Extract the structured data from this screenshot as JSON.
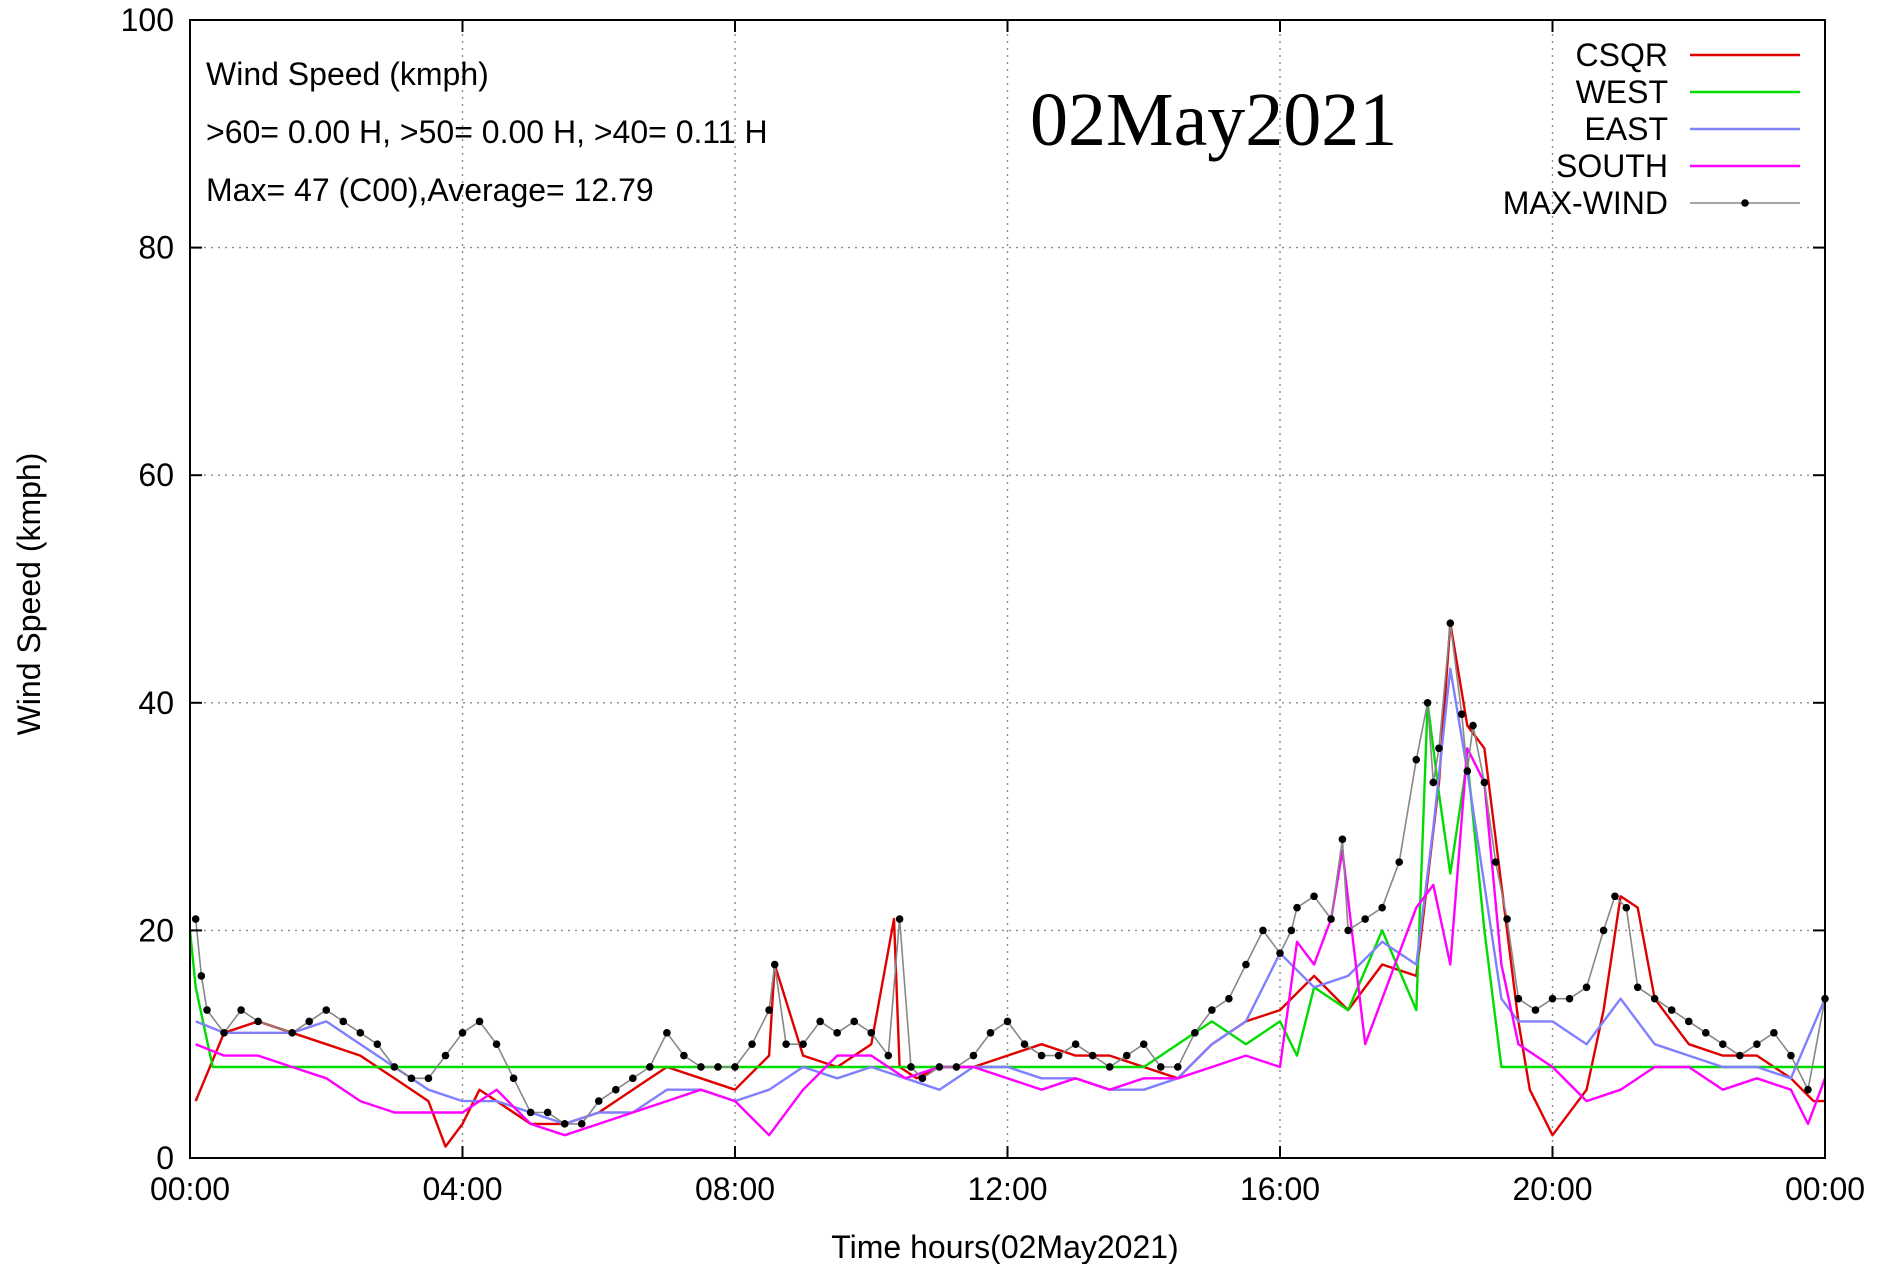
{
  "chart_data": {
    "type": "line",
    "title": "",
    "date_stamp": "02May2021",
    "xlabel": "Time hours(02May2021)",
    "ylabel": "Wind Speed (kmph)",
    "xlim": [
      "00:00",
      "24:00"
    ],
    "ylim": [
      0,
      100
    ],
    "x_ticks": [
      "00:00",
      "04:00",
      "08:00",
      "12:00",
      "16:00",
      "20:00",
      "00:00"
    ],
    "y_ticks": [
      "0",
      "20",
      "40",
      "60",
      "80",
      "100"
    ],
    "grid": true,
    "legend_position": "top-right",
    "annotations": [
      "Wind Speed (kmph)",
      ">60=  0.00 H, >50=  0.00 H, >40=  0.11 H",
      "Max= 47 (C00),Average= 12.79"
    ],
    "series": [
      {
        "name": "CSQR",
        "color": "#e00000",
        "x": [
          "00:05",
          "00:30",
          "01:00",
          "01:30",
          "02:00",
          "02:30",
          "03:00",
          "03:30",
          "03:45",
          "04:00",
          "04:15",
          "04:30",
          "05:00",
          "05:30",
          "06:00",
          "06:30",
          "07:00",
          "07:30",
          "08:00",
          "08:30",
          "08:35",
          "09:00",
          "09:30",
          "10:00",
          "10:20",
          "10:25",
          "10:40",
          "11:00",
          "11:30",
          "12:00",
          "12:30",
          "13:00",
          "13:30",
          "14:00",
          "14:30",
          "15:00",
          "15:30",
          "16:00",
          "16:30",
          "17:00",
          "17:30",
          "18:00",
          "18:20",
          "18:30",
          "18:45",
          "19:00",
          "19:15",
          "19:30",
          "19:40",
          "20:00",
          "20:30",
          "20:45",
          "21:00",
          "21:15",
          "21:30",
          "22:00",
          "22:30",
          "23:00",
          "23:30",
          "23:50",
          "24:00"
        ],
        "y": [
          5,
          11,
          12,
          11,
          10,
          9,
          7,
          5,
          1,
          3,
          6,
          5,
          3,
          3,
          4,
          6,
          8,
          7,
          6,
          9,
          17,
          9,
          8,
          10,
          21,
          8,
          7,
          8,
          8,
          9,
          10,
          9,
          9,
          8,
          7,
          10,
          12,
          13,
          16,
          13,
          17,
          16,
          33,
          47,
          38,
          36,
          24,
          12,
          6,
          2,
          6,
          13,
          23,
          22,
          14,
          10,
          9,
          9,
          7,
          5,
          5
        ]
      },
      {
        "name": "WEST",
        "color": "#00dc00",
        "x": [
          "00:00",
          "00:05",
          "00:20",
          "02:00",
          "04:00",
          "06:00",
          "08:00",
          "10:00",
          "12:00",
          "14:00",
          "15:00",
          "15:30",
          "16:00",
          "16:15",
          "16:30",
          "17:00",
          "17:30",
          "18:00",
          "18:10",
          "18:20",
          "18:30",
          "18:45",
          "19:00",
          "19:15",
          "19:30",
          "19:40",
          "19:45",
          "20:00",
          "20:30",
          "21:00",
          "22:00",
          "23:00",
          "24:00"
        ],
        "y": [
          20,
          15,
          8,
          8,
          8,
          8,
          8,
          8,
          8,
          8,
          12,
          10,
          12,
          9,
          15,
          13,
          20,
          13,
          40,
          32,
          25,
          35,
          20,
          8,
          8,
          8,
          8,
          8,
          8,
          8,
          8,
          8,
          8
        ]
      },
      {
        "name": "EAST",
        "color": "#8080ff",
        "x": [
          "00:05",
          "00:30",
          "01:00",
          "01:30",
          "02:00",
          "02:30",
          "03:00",
          "03:30",
          "04:00",
          "04:30",
          "05:00",
          "05:30",
          "06:00",
          "06:30",
          "07:00",
          "07:30",
          "08:00",
          "08:30",
          "09:00",
          "09:30",
          "10:00",
          "10:30",
          "11:00",
          "11:30",
          "12:00",
          "12:30",
          "13:00",
          "13:30",
          "14:00",
          "14:30",
          "15:00",
          "15:30",
          "16:00",
          "16:30",
          "17:00",
          "17:30",
          "18:00",
          "18:15",
          "18:30",
          "18:45",
          "19:00",
          "19:15",
          "19:30",
          "20:00",
          "20:30",
          "21:00",
          "21:30",
          "22:00",
          "22:30",
          "23:00",
          "23:30",
          "24:00"
        ],
        "y": [
          12,
          11,
          11,
          11,
          12,
          10,
          8,
          6,
          5,
          5,
          4,
          3,
          4,
          4,
          6,
          6,
          5,
          6,
          8,
          7,
          8,
          7,
          6,
          8,
          8,
          7,
          7,
          6,
          6,
          7,
          10,
          12,
          18,
          15,
          16,
          19,
          17,
          29,
          43,
          34,
          24,
          14,
          12,
          12,
          10,
          14,
          10,
          9,
          8,
          8,
          7,
          14
        ]
      },
      {
        "name": "SOUTH",
        "color": "#ff00ff",
        "x": [
          "00:05",
          "00:30",
          "01:00",
          "01:30",
          "02:00",
          "02:30",
          "03:00",
          "03:30",
          "04:00",
          "04:30",
          "05:00",
          "05:30",
          "06:00",
          "06:30",
          "07:00",
          "07:30",
          "08:00",
          "08:30",
          "09:00",
          "09:30",
          "10:00",
          "10:30",
          "11:00",
          "11:30",
          "12:00",
          "12:30",
          "13:00",
          "13:30",
          "14:00",
          "14:30",
          "15:00",
          "15:30",
          "16:00",
          "16:15",
          "16:30",
          "16:45",
          "16:55",
          "17:15",
          "17:45",
          "18:00",
          "18:15",
          "18:30",
          "18:45",
          "19:00",
          "19:15",
          "19:30",
          "20:00",
          "20:30",
          "21:00",
          "21:30",
          "22:00",
          "22:30",
          "23:00",
          "23:30",
          "23:45",
          "24:00"
        ],
        "y": [
          10,
          9,
          9,
          8,
          7,
          5,
          4,
          4,
          4,
          6,
          3,
          2,
          3,
          4,
          5,
          6,
          5,
          2,
          6,
          9,
          9,
          7,
          8,
          8,
          7,
          6,
          7,
          6,
          7,
          7,
          8,
          9,
          8,
          19,
          17,
          21,
          27,
          10,
          18,
          22,
          24,
          17,
          36,
          33,
          17,
          10,
          8,
          5,
          6,
          8,
          8,
          6,
          7,
          6,
          3,
          7
        ]
      },
      {
        "name": "MAX-WIND",
        "color": "#000000",
        "x": [
          "00:05",
          "00:10",
          "00:15",
          "00:30",
          "00:45",
          "01:00",
          "01:30",
          "01:45",
          "02:00",
          "02:15",
          "02:30",
          "02:45",
          "03:00",
          "03:15",
          "03:30",
          "03:45",
          "04:00",
          "04:15",
          "04:30",
          "04:45",
          "05:00",
          "05:15",
          "05:30",
          "05:45",
          "06:00",
          "06:15",
          "06:30",
          "06:45",
          "07:00",
          "07:15",
          "07:30",
          "07:45",
          "08:00",
          "08:15",
          "08:30",
          "08:35",
          "08:45",
          "09:00",
          "09:15",
          "09:30",
          "09:45",
          "10:00",
          "10:15",
          "10:25",
          "10:35",
          "10:45",
          "11:00",
          "11:15",
          "11:30",
          "11:45",
          "12:00",
          "12:15",
          "12:30",
          "12:45",
          "13:00",
          "13:15",
          "13:30",
          "13:45",
          "14:00",
          "14:15",
          "14:30",
          "14:45",
          "15:00",
          "15:15",
          "15:30",
          "15:45",
          "16:00",
          "16:10",
          "16:15",
          "16:30",
          "16:45",
          "16:55",
          "17:00",
          "17:15",
          "17:30",
          "17:45",
          "18:00",
          "18:10",
          "18:15",
          "18:20",
          "18:30",
          "18:40",
          "18:45",
          "18:50",
          "19:00",
          "19:10",
          "19:20",
          "19:30",
          "19:45",
          "20:00",
          "20:15",
          "20:30",
          "20:45",
          "20:55",
          "21:05",
          "21:15",
          "21:30",
          "21:45",
          "22:00",
          "22:15",
          "22:30",
          "22:45",
          "23:00",
          "23:15",
          "23:30",
          "23:45",
          "24:00"
        ],
        "y": [
          21,
          16,
          13,
          11,
          13,
          12,
          11,
          12,
          13,
          12,
          11,
          10,
          8,
          7,
          7,
          9,
          11,
          12,
          10,
          7,
          4,
          4,
          3,
          3,
          5,
          6,
          7,
          8,
          11,
          9,
          8,
          8,
          8,
          10,
          13,
          17,
          10,
          10,
          12,
          11,
          12,
          11,
          9,
          21,
          8,
          7,
          8,
          8,
          9,
          11,
          12,
          10,
          9,
          9,
          10,
          9,
          8,
          9,
          10,
          8,
          8,
          11,
          13,
          14,
          17,
          20,
          18,
          20,
          22,
          23,
          21,
          28,
          20,
          21,
          22,
          26,
          35,
          40,
          33,
          36,
          47,
          39,
          34,
          38,
          33,
          26,
          21,
          14,
          13,
          14,
          14,
          15,
          20,
          23,
          22,
          15,
          14,
          13,
          12,
          11,
          10,
          9,
          10,
          11,
          9,
          6,
          14
        ]
      }
    ]
  }
}
